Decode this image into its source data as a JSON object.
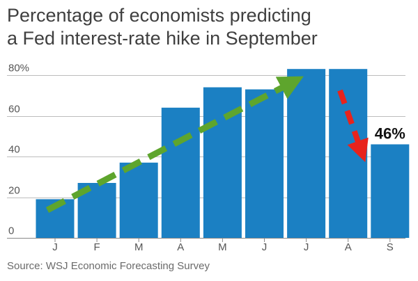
{
  "title_line1": "Percentage of economists predicting",
  "title_line2": "a Fed interest-rate hike in September",
  "source": "Source: WSJ Economic Forecasting Survey",
  "colors": {
    "bar": "#1b80c3",
    "green_arrow": "#5ea52d",
    "red_arrow": "#e8231c",
    "grid": "#bdbdbd",
    "axis_text": "#555555"
  },
  "chart_data": {
    "type": "bar",
    "categories": [
      "J",
      "F",
      "M",
      "A",
      "M",
      "J",
      "J",
      "A",
      "S"
    ],
    "values": [
      19,
      27,
      37,
      64,
      74,
      73,
      83,
      83,
      46
    ],
    "ylim": [
      0,
      80
    ],
    "yticks": [
      0,
      20,
      40,
      60,
      80
    ],
    "ytick_labels": [
      "0",
      "20",
      "40",
      "60",
      "80%"
    ],
    "grid": true,
    "annotations": [
      {
        "text": "46%",
        "category_index": 8,
        "value": 46
      }
    ]
  }
}
